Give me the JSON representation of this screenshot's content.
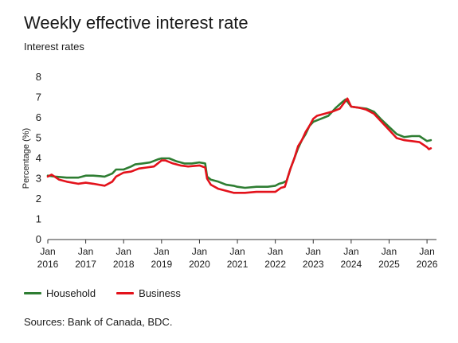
{
  "title": "Weekly effective interest rate",
  "subtitle": "Interest rates",
  "source": "Sources: Bank of Canada, BDC.",
  "colors": {
    "household": "#2e7d32",
    "business": "#e3121b",
    "axis": "#333333"
  },
  "chart_data": {
    "type": "line",
    "ylabel": "Percentage (%)",
    "ylim": [
      0,
      8
    ],
    "yticks": [
      "0",
      "1",
      "2",
      "3",
      "4",
      "5",
      "6",
      "7",
      "8"
    ],
    "xlim": [
      2016.0,
      2026.25
    ],
    "xticks": [
      {
        "year": "Jan",
        "label": "2016"
      },
      {
        "year": "Jan",
        "label": "2017"
      },
      {
        "year": "Jan",
        "label": "2018"
      },
      {
        "year": "Jan",
        "label": "2019"
      },
      {
        "year": "Jan",
        "label": "2020"
      },
      {
        "year": "Jan",
        "label": "2021"
      },
      {
        "year": "Jan",
        "label": "2022"
      },
      {
        "year": "Jan",
        "label": "2023"
      },
      {
        "year": "Jan",
        "label": "2024"
      },
      {
        "year": "Jan",
        "label": "2025"
      },
      {
        "year": "Jan",
        "label": "2026"
      }
    ],
    "grid": false,
    "legend_position": "bottom-left",
    "series": [
      {
        "name": "Household",
        "color": "#2e7d32",
        "x": [
          2016.0,
          2016.2,
          2016.5,
          2016.8,
          2017.0,
          2017.2,
          2017.5,
          2017.7,
          2017.8,
          2018.0,
          2018.2,
          2018.3,
          2018.5,
          2018.7,
          2018.9,
          2019.0,
          2019.2,
          2019.4,
          2019.6,
          2019.8,
          2020.0,
          2020.15,
          2020.2,
          2020.3,
          2020.5,
          2020.7,
          2020.9,
          2021.0,
          2021.2,
          2021.5,
          2021.8,
          2022.0,
          2022.1,
          2022.2,
          2022.3,
          2022.4,
          2022.5,
          2022.6,
          2022.7,
          2022.8,
          2022.9,
          2023.0,
          2023.2,
          2023.4,
          2023.6,
          2023.75,
          2023.85,
          2023.9,
          2024.0,
          2024.2,
          2024.4,
          2024.6,
          2024.8,
          2025.0,
          2025.2,
          2025.4,
          2025.6,
          2025.8,
          2026.0,
          2026.1
        ],
        "y": [
          3.15,
          3.1,
          3.05,
          3.05,
          3.15,
          3.15,
          3.1,
          3.25,
          3.45,
          3.45,
          3.6,
          3.7,
          3.75,
          3.8,
          3.95,
          4.0,
          4.0,
          3.85,
          3.75,
          3.75,
          3.8,
          3.75,
          3.1,
          2.95,
          2.85,
          2.7,
          2.65,
          2.6,
          2.55,
          2.6,
          2.6,
          2.65,
          2.75,
          2.8,
          2.9,
          3.5,
          4.0,
          4.5,
          4.9,
          5.2,
          5.6,
          5.8,
          5.95,
          6.1,
          6.5,
          6.75,
          6.9,
          6.8,
          6.55,
          6.5,
          6.45,
          6.3,
          5.9,
          5.55,
          5.2,
          5.05,
          5.1,
          5.1,
          4.85,
          4.9
        ]
      },
      {
        "name": "Business",
        "color": "#e3121b",
        "x": [
          2016.0,
          2016.1,
          2016.3,
          2016.5,
          2016.8,
          2017.0,
          2017.2,
          2017.5,
          2017.7,
          2017.8,
          2018.0,
          2018.2,
          2018.4,
          2018.6,
          2018.8,
          2019.0,
          2019.1,
          2019.3,
          2019.5,
          2019.7,
          2020.0,
          2020.15,
          2020.2,
          2020.3,
          2020.5,
          2020.7,
          2020.9,
          2021.0,
          2021.2,
          2021.5,
          2021.8,
          2022.0,
          2022.15,
          2022.25,
          2022.4,
          2022.5,
          2022.6,
          2022.7,
          2022.8,
          2022.9,
          2023.0,
          2023.1,
          2023.3,
          2023.5,
          2023.7,
          2023.9,
          2024.0,
          2024.2,
          2024.4,
          2024.6,
          2024.8,
          2025.0,
          2025.2,
          2025.4,
          2025.6,
          2025.8,
          2026.0,
          2026.05,
          2026.1
        ],
        "y": [
          3.1,
          3.2,
          2.95,
          2.85,
          2.75,
          2.8,
          2.75,
          2.65,
          2.85,
          3.1,
          3.3,
          3.35,
          3.5,
          3.55,
          3.6,
          3.9,
          3.9,
          3.75,
          3.65,
          3.6,
          3.65,
          3.55,
          3.0,
          2.7,
          2.5,
          2.4,
          2.3,
          2.3,
          2.3,
          2.35,
          2.35,
          2.35,
          2.55,
          2.6,
          3.5,
          4.0,
          4.6,
          4.9,
          5.3,
          5.6,
          5.95,
          6.1,
          6.2,
          6.3,
          6.45,
          6.95,
          6.55,
          6.5,
          6.4,
          6.2,
          5.8,
          5.4,
          5.0,
          4.9,
          4.85,
          4.8,
          4.55,
          4.45,
          4.5
        ]
      }
    ]
  }
}
